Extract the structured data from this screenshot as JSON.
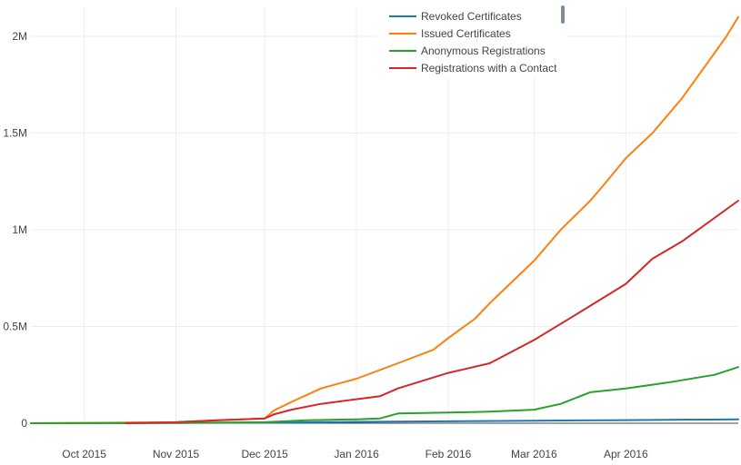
{
  "chart_data": {
    "type": "line",
    "title": "",
    "xlabel": "",
    "ylabel": "",
    "x_type": "date",
    "xlim": [
      "2015-09-13",
      "2016-05-09"
    ],
    "ylim": [
      0,
      2150000
    ],
    "x_ticks": [
      {
        "date": "2015-10-01",
        "label": "Oct 2015"
      },
      {
        "date": "2015-11-01",
        "label": "Nov 2015"
      },
      {
        "date": "2015-12-01",
        "label": "Dec 2015"
      },
      {
        "date": "2016-01-01",
        "label": "Jan 2016"
      },
      {
        "date": "2016-02-01",
        "label": "Feb 2016"
      },
      {
        "date": "2016-03-01",
        "label": "Mar 2016"
      },
      {
        "date": "2016-04-01",
        "label": "Apr 2016"
      }
    ],
    "y_ticks": [
      {
        "value": 0,
        "label": "0"
      },
      {
        "value": 500000,
        "label": "0.5M"
      },
      {
        "value": 1000000,
        "label": "1M"
      },
      {
        "value": 1500000,
        "label": "1.5M"
      },
      {
        "value": 2000000,
        "label": "2M"
      }
    ],
    "grid": true,
    "legend_position": "top-right",
    "series": [
      {
        "name": "Revoked Certificates",
        "color": "#1f77b4",
        "x": [
          "2015-09-13",
          "2015-11-01",
          "2015-12-01",
          "2016-01-01",
          "2016-02-01",
          "2016-03-01",
          "2016-04-01",
          "2016-05-09"
        ],
        "y": [
          0,
          1000,
          3000,
          7000,
          10000,
          13000,
          16000,
          20000
        ]
      },
      {
        "name": "Issued Certificates",
        "color": "#ff7f0e",
        "x": [
          "2015-09-13",
          "2015-10-01",
          "2015-11-01",
          "2015-11-15",
          "2015-12-01",
          "2015-12-04",
          "2015-12-10",
          "2015-12-20",
          "2016-01-01",
          "2016-01-15",
          "2016-01-27",
          "2016-02-01",
          "2016-02-10",
          "2016-02-15",
          "2016-03-01",
          "2016-03-10",
          "2016-03-20",
          "2016-03-25",
          "2016-04-01",
          "2016-04-10",
          "2016-04-20",
          "2016-04-28",
          "2016-05-05",
          "2016-05-09"
        ],
        "y": [
          0,
          2000,
          5000,
          15000,
          25000,
          65000,
          110000,
          180000,
          230000,
          310000,
          380000,
          440000,
          540000,
          620000,
          840000,
          1000000,
          1150000,
          1240000,
          1370000,
          1500000,
          1680000,
          1850000,
          2000000,
          2100000
        ]
      },
      {
        "name": "Anonymous Registrations",
        "color": "#2ca02c",
        "x": [
          "2015-09-13",
          "2015-11-01",
          "2015-12-01",
          "2015-12-15",
          "2016-01-01",
          "2016-01-09",
          "2016-01-15",
          "2016-02-01",
          "2016-02-15",
          "2016-03-01",
          "2016-03-10",
          "2016-03-20",
          "2016-04-01",
          "2016-04-15",
          "2016-05-01",
          "2016-05-09"
        ],
        "y": [
          0,
          2000,
          5000,
          15000,
          20000,
          25000,
          50000,
          55000,
          60000,
          70000,
          100000,
          160000,
          180000,
          210000,
          250000,
          290000
        ]
      },
      {
        "name": "Registrations with a Contact",
        "color": "#d62728",
        "x": [
          "2015-10-15",
          "2015-11-01",
          "2015-11-15",
          "2015-12-01",
          "2015-12-04",
          "2015-12-10",
          "2015-12-20",
          "2016-01-09",
          "2016-01-15",
          "2016-02-01",
          "2016-02-15",
          "2016-03-01",
          "2016-03-15",
          "2016-04-01",
          "2016-04-10",
          "2016-04-20",
          "2016-05-09"
        ],
        "y": [
          0,
          5000,
          15000,
          25000,
          45000,
          70000,
          100000,
          140000,
          180000,
          260000,
          310000,
          430000,
          560000,
          720000,
          850000,
          940000,
          1150000
        ]
      }
    ]
  }
}
